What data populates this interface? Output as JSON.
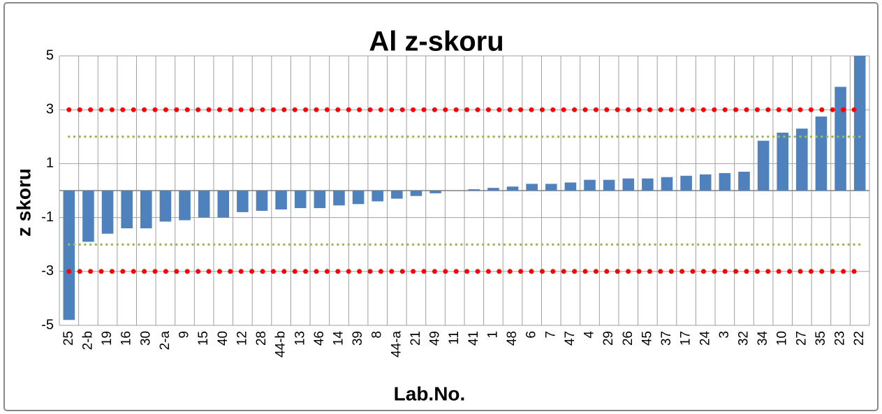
{
  "chart_data": {
    "type": "bar",
    "title": "Al z-skoru",
    "x_label": "Lab.No.",
    "y_label": "z skoru",
    "categories": [
      "25",
      "2-b",
      "19",
      "16",
      "30",
      "2-a",
      "9",
      "15",
      "40",
      "12",
      "28",
      "44-b",
      "13",
      "46",
      "14",
      "39",
      "8",
      "44-a",
      "21",
      "49",
      "11",
      "41",
      "1",
      "48",
      "6",
      "7",
      "47",
      "4",
      "29",
      "26",
      "45",
      "37",
      "17",
      "24",
      "3",
      "32",
      "34",
      "10",
      "27",
      "35",
      "23",
      "22"
    ],
    "values": [
      -4.8,
      -1.9,
      -1.6,
      -1.4,
      -1.4,
      -1.15,
      -1.1,
      -1.0,
      -1.0,
      -0.8,
      -0.75,
      -0.7,
      -0.65,
      -0.65,
      -0.55,
      -0.5,
      -0.4,
      -0.3,
      -0.2,
      -0.1,
      0,
      0.05,
      0.1,
      0.15,
      0.25,
      0.25,
      0.3,
      0.4,
      0.4,
      0.45,
      0.45,
      0.5,
      0.55,
      0.6,
      0.65,
      0.7,
      1.85,
      2.15,
      2.3,
      2.75,
      3.85,
      5
    ],
    "color": "#4f81bd",
    "ylim": [
      -5,
      5
    ],
    "yticks": [
      5,
      3,
      1,
      -1,
      -3,
      -5
    ],
    "grid": true,
    "reference_lines": [
      {
        "value": 3,
        "color": "#ff0000"
      },
      {
        "value": -3,
        "color": "#ff0000"
      },
      {
        "value": 2,
        "color": "#9bbb59"
      },
      {
        "value": -2,
        "color": "#9bbb59"
      }
    ]
  }
}
